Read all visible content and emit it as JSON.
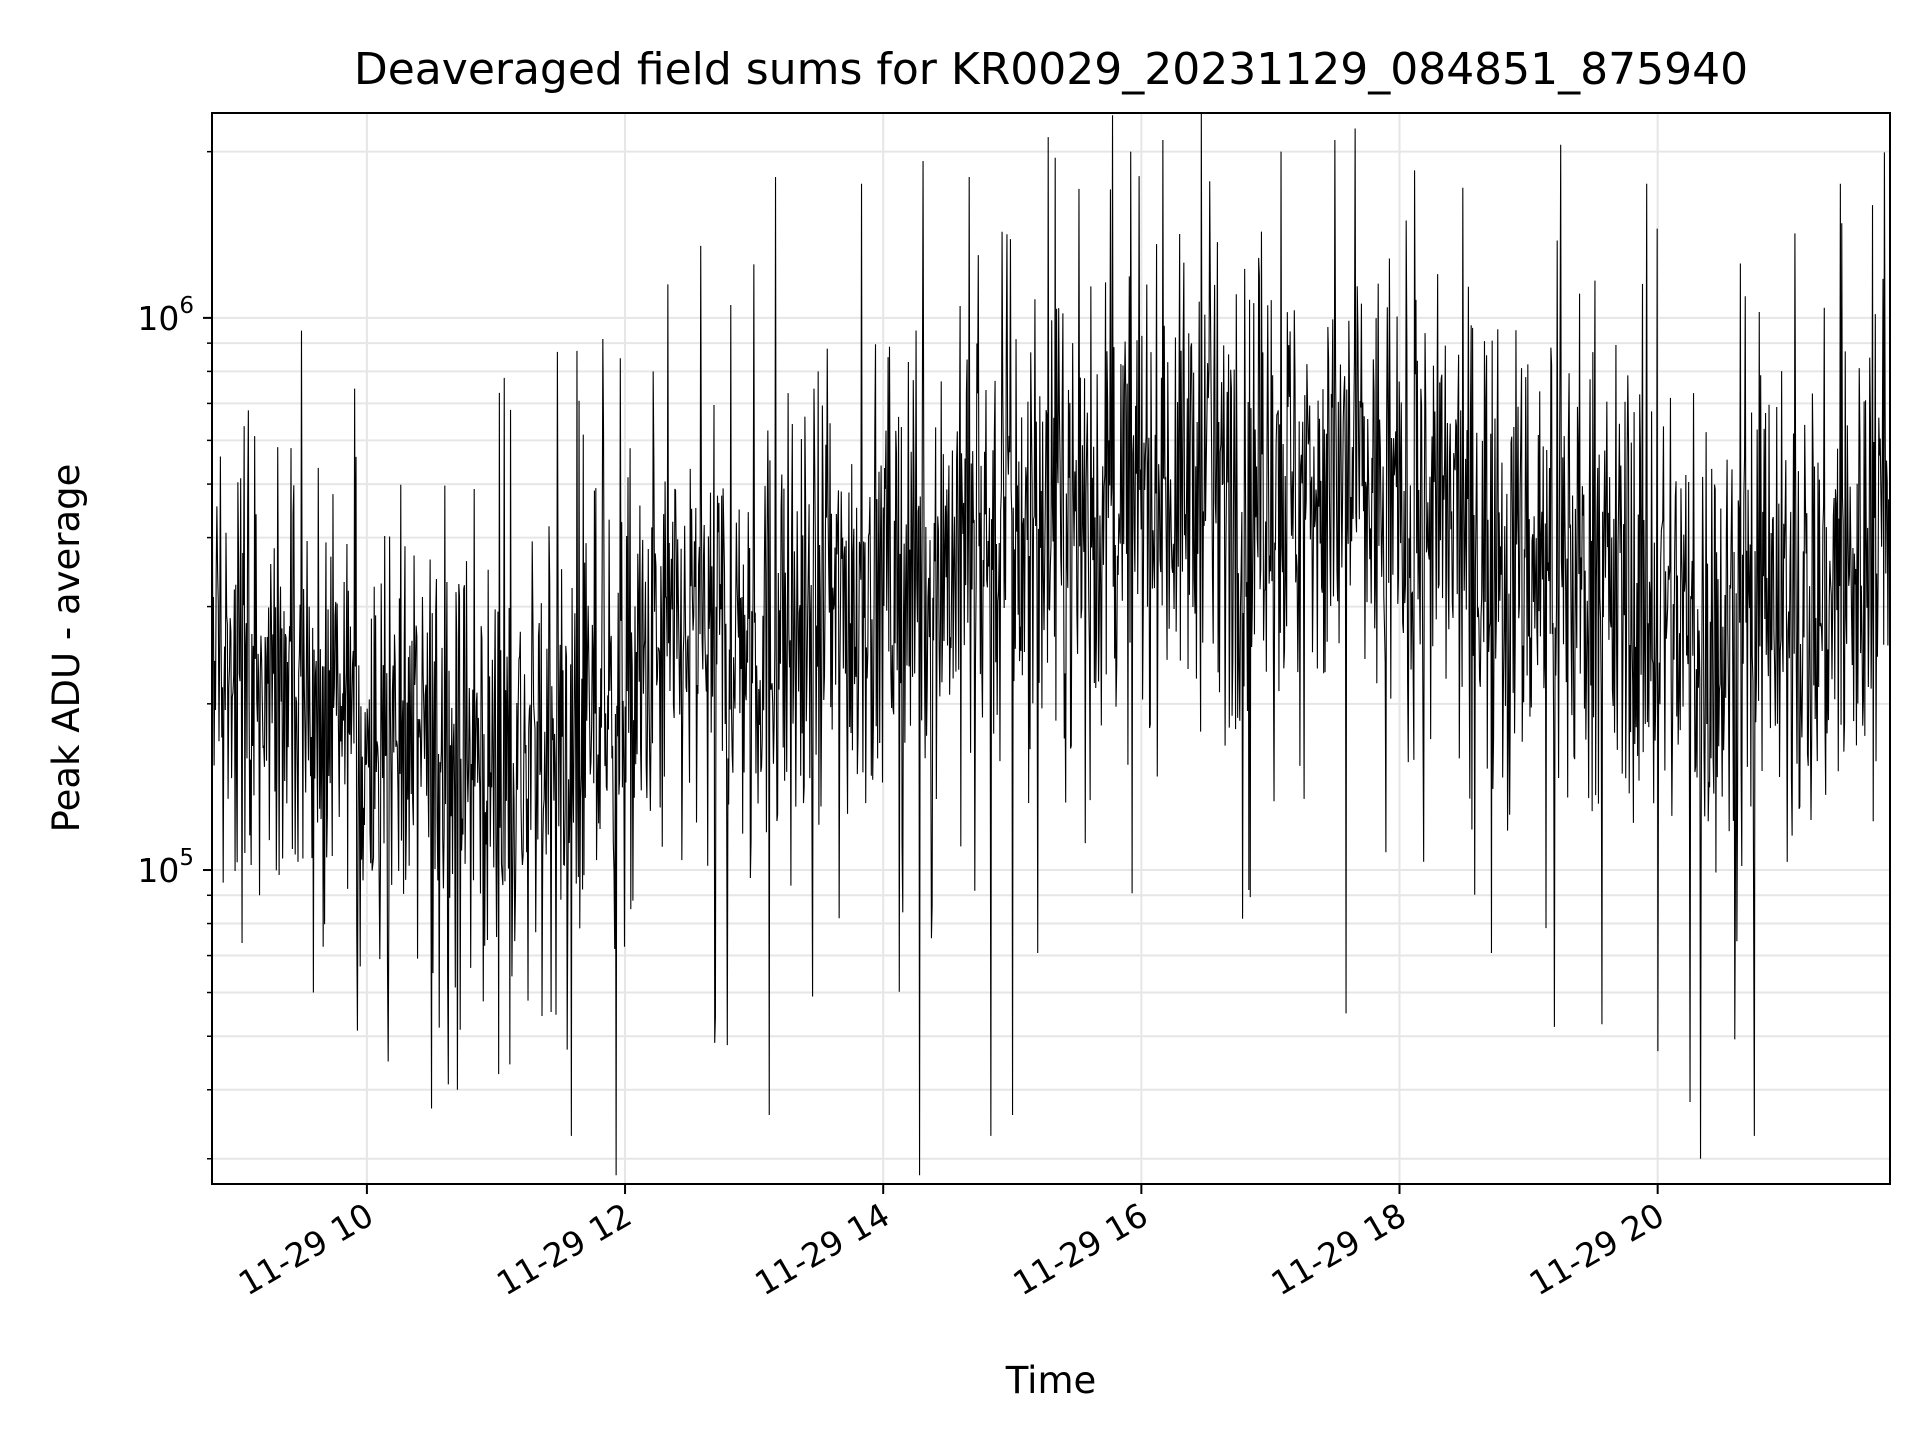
{
  "chart_data": {
    "type": "line",
    "title": "Deaveraged field sums for KR0029_20231129_084851_875940",
    "xlabel": "Time",
    "ylabel": "Peak ADU - average",
    "yscale": "log",
    "grid": true,
    "xlim": [
      "2023-11-29 08:48",
      "2023-11-29 21:48"
    ],
    "ylim": [
      27000,
      2350000
    ],
    "x_ticks": [
      {
        "value": "2023-11-29 10:00",
        "label": "11-29 10"
      },
      {
        "value": "2023-11-29 12:00",
        "label": "11-29 12"
      },
      {
        "value": "2023-11-29 14:00",
        "label": "11-29 14"
      },
      {
        "value": "2023-11-29 16:00",
        "label": "11-29 16"
      },
      {
        "value": "2023-11-29 18:00",
        "label": "11-29 18"
      },
      {
        "value": "2023-11-29 20:00",
        "label": "11-29 20"
      }
    ],
    "y_ticks": [
      {
        "value": 100000,
        "base": "10",
        "exponent": "5"
      },
      {
        "value": 1000000,
        "base": "10",
        "exponent": "6"
      }
    ],
    "line_color": "#000000",
    "series": [
      {
        "x": [
          "2023-11-29 08:48",
          "2023-11-29 09:00",
          "2023-11-29 09:30",
          "2023-11-29 10:00",
          "2023-11-29 10:30",
          "2023-11-29 11:00",
          "2023-11-29 11:30",
          "2023-11-29 12:00",
          "2023-11-29 12:30",
          "2023-11-29 13:00",
          "2023-11-29 13:30",
          "2023-11-29 14:00",
          "2023-11-29 14:30",
          "2023-11-29 15:00",
          "2023-11-29 15:30",
          "2023-11-29 16:00",
          "2023-11-29 16:30",
          "2023-11-29 17:00",
          "2023-11-29 17:30",
          "2023-11-29 18:00",
          "2023-11-29 18:30",
          "2023-11-29 19:00",
          "2023-11-29 19:30",
          "2023-11-29 20:00",
          "2023-11-29 20:30",
          "2023-11-29 21:00",
          "2023-11-29 21:30",
          "2023-11-29 21:48"
        ],
        "center": [
          250000,
          220000,
          190000,
          180000,
          160000,
          150000,
          165000,
          200000,
          260000,
          260000,
          290000,
          330000,
          370000,
          400000,
          420000,
          480000,
          500000,
          480000,
          520000,
          440000,
          410000,
          370000,
          340000,
          300000,
          260000,
          280000,
          330000,
          420000
        ],
        "spikes": [
          {
            "x": "2023-11-29 08:48",
            "y": 800000
          },
          {
            "x": "2023-11-29 09:05",
            "y": 680000
          },
          {
            "x": "2023-11-29 09:10",
            "y": 90000
          },
          {
            "x": "2023-11-29 09:35",
            "y": 60000
          },
          {
            "x": "2023-11-29 09:55",
            "y": 560000
          },
          {
            "x": "2023-11-29 10:10",
            "y": 45000
          },
          {
            "x": "2023-11-29 10:30",
            "y": 37000
          },
          {
            "x": "2023-11-29 10:42",
            "y": 40000
          },
          {
            "x": "2023-11-29 10:50",
            "y": 490000
          },
          {
            "x": "2023-11-29 11:15",
            "y": 58000
          },
          {
            "x": "2023-11-29 11:35",
            "y": 33000
          },
          {
            "x": "2023-11-29 11:50",
            "y": 620000
          },
          {
            "x": "2023-11-29 11:56",
            "y": 28000
          },
          {
            "x": "2023-11-29 12:13",
            "y": 800000
          },
          {
            "x": "2023-11-29 12:20",
            "y": 1150000
          },
          {
            "x": "2023-11-29 12:42",
            "y": 54000
          },
          {
            "x": "2023-11-29 13:00",
            "y": 1250000
          },
          {
            "x": "2023-11-29 13:07",
            "y": 36000
          },
          {
            "x": "2023-11-29 13:10",
            "y": 1800000
          },
          {
            "x": "2023-11-29 13:50",
            "y": 1750000
          },
          {
            "x": "2023-11-29 14:17",
            "y": 28000
          },
          {
            "x": "2023-11-29 14:40",
            "y": 1800000
          },
          {
            "x": "2023-11-29 14:50",
            "y": 33000
          },
          {
            "x": "2023-11-29 15:00",
            "y": 36000
          },
          {
            "x": "2023-11-29 15:20",
            "y": 1950000
          },
          {
            "x": "2023-11-29 15:55",
            "y": 2000000
          },
          {
            "x": "2023-11-29 16:10",
            "y": 2100000
          },
          {
            "x": "2023-11-29 16:28",
            "y": 2350000
          },
          {
            "x": "2023-11-29 17:05",
            "y": 2000000
          },
          {
            "x": "2023-11-29 17:30",
            "y": 2100000
          },
          {
            "x": "2023-11-29 17:35",
            "y": 55000
          },
          {
            "x": "2023-11-29 18:07",
            "y": 1850000
          },
          {
            "x": "2023-11-29 19:12",
            "y": 52000
          },
          {
            "x": "2023-11-29 19:55",
            "y": 1750000
          },
          {
            "x": "2023-11-29 20:00",
            "y": 47000
          },
          {
            "x": "2023-11-29 20:15",
            "y": 38000
          },
          {
            "x": "2023-11-29 20:20",
            "y": 30000
          },
          {
            "x": "2023-11-29 20:45",
            "y": 33000
          },
          {
            "x": "2023-11-29 21:25",
            "y": 1750000
          },
          {
            "x": "2023-11-29 21:40",
            "y": 1600000
          }
        ]
      }
    ]
  }
}
